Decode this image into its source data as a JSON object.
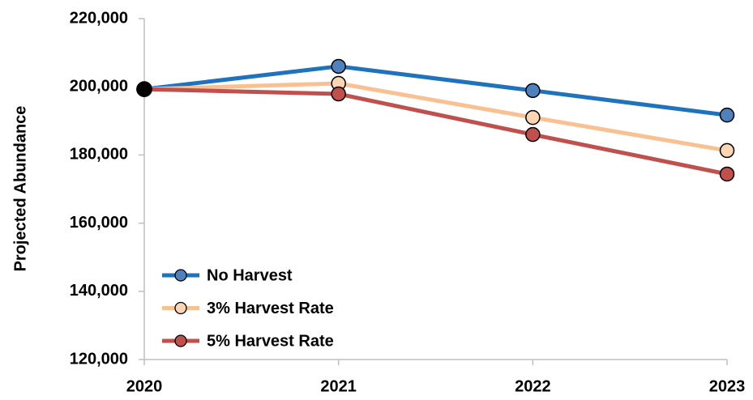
{
  "chart_data": {
    "type": "line",
    "y_label": "Projected Abundance",
    "x": [
      2020,
      2021,
      2022,
      2023
    ],
    "xlim": [
      2020,
      2023
    ],
    "xticks": [
      2020,
      2021,
      2022,
      2023
    ],
    "ylim": [
      120000,
      220000
    ],
    "yticks": [
      {
        "value": 120000,
        "label": "120,000"
      },
      {
        "value": 140000,
        "label": "140,000"
      },
      {
        "value": 160000,
        "label": "160,000"
      },
      {
        "value": 180000,
        "label": "180,000"
      },
      {
        "value": 200000,
        "label": "200,000"
      },
      {
        "value": 220000,
        "label": "220,000"
      }
    ],
    "grid": false,
    "legend": "lower left",
    "start_marker_color": "#000000",
    "series": [
      {
        "name": "No Harvest",
        "color": "#1f72bc",
        "marker_color": "#4f81bd",
        "values": [
          199300,
          206000,
          198900,
          191700
        ]
      },
      {
        "name": "3% Harvest Rate",
        "color": "#f9c191",
        "marker_color": "#fcd5b4",
        "values": [
          199300,
          201000,
          191000,
          181300
        ]
      },
      {
        "name": "5% Harvest Rate",
        "color": "#c0504d",
        "marker_color": "#c0504d",
        "values": [
          199300,
          197900,
          186000,
          174400
        ]
      }
    ]
  }
}
